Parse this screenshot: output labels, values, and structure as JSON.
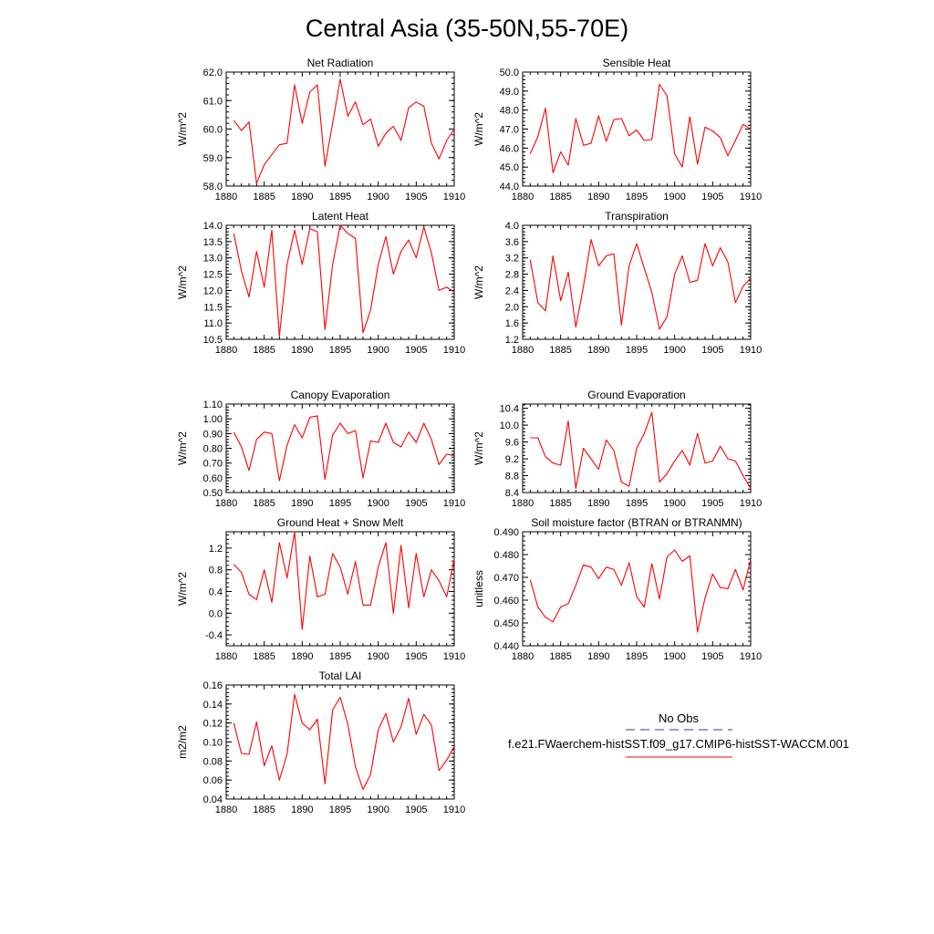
{
  "title": "Central Asia (35-50N,55-70E)",
  "x_ticks": [
    "1880",
    "1885",
    "1890",
    "1895",
    "1900",
    "1905",
    "1910"
  ],
  "legend": {
    "obs_label": "No Obs",
    "obs_color": "#3333aa",
    "model_label": "f.e21.FWaerchem-histSST.f09_g17.CMIP6-histSST-WACCM.001",
    "model_color": "#ff0000"
  },
  "chart_data": [
    {
      "type": "line",
      "title": "Net Radiation",
      "ylabel": "W/m^2",
      "xlim": [
        1880,
        1910
      ],
      "ylim": [
        58.0,
        62.0
      ],
      "y_ticks": [
        "58.0",
        "59.0",
        "60.0",
        "61.0",
        "62.0"
      ],
      "x": [
        1881,
        1882,
        1883,
        1884,
        1885,
        1886,
        1887,
        1888,
        1889,
        1890,
        1891,
        1892,
        1893,
        1894,
        1895,
        1896,
        1897,
        1898,
        1899,
        1900,
        1901,
        1902,
        1903,
        1904,
        1905,
        1906,
        1907,
        1908,
        1909,
        1910
      ],
      "series": [
        {
          "values": [
            60.3,
            59.95,
            60.25,
            58.1,
            58.75,
            59.1,
            59.45,
            59.5,
            61.55,
            60.2,
            61.3,
            61.55,
            58.7,
            60.2,
            61.75,
            60.45,
            60.95,
            60.15,
            60.35,
            59.4,
            59.85,
            60.1,
            59.6,
            60.75,
            60.95,
            60.8,
            59.5,
            58.95,
            59.6,
            60.0
          ]
        }
      ]
    },
    {
      "type": "line",
      "title": "Sensible Heat",
      "ylabel": "W/m^2",
      "xlim": [
        1880,
        1910
      ],
      "ylim": [
        44.0,
        50.0
      ],
      "y_ticks": [
        "44.0",
        "45.0",
        "46.0",
        "47.0",
        "48.0",
        "49.0",
        "50.0"
      ],
      "x": [
        1881,
        1882,
        1883,
        1884,
        1885,
        1886,
        1887,
        1888,
        1889,
        1890,
        1891,
        1892,
        1893,
        1894,
        1895,
        1896,
        1897,
        1898,
        1899,
        1900,
        1901,
        1902,
        1903,
        1904,
        1905,
        1906,
        1907,
        1908,
        1909,
        1910
      ],
      "series": [
        {
          "values": [
            45.7,
            46.6,
            48.1,
            44.7,
            45.8,
            45.1,
            47.55,
            46.15,
            46.25,
            47.7,
            46.35,
            47.5,
            47.55,
            46.65,
            46.95,
            46.4,
            46.45,
            49.35,
            48.75,
            45.7,
            45.0,
            47.65,
            45.15,
            47.1,
            46.9,
            46.55,
            45.6,
            46.4,
            47.25,
            47.0
          ]
        }
      ]
    },
    {
      "type": "line",
      "title": "Latent Heat",
      "ylabel": "W/m^2",
      "xlim": [
        1880,
        1910
      ],
      "ylim": [
        10.5,
        14.0
      ],
      "y_ticks": [
        "10.5",
        "11.0",
        "11.5",
        "12.0",
        "12.5",
        "13.0",
        "13.5",
        "14.0"
      ],
      "x": [
        1881,
        1882,
        1883,
        1884,
        1885,
        1886,
        1887,
        1888,
        1889,
        1890,
        1891,
        1892,
        1893,
        1894,
        1895,
        1896,
        1897,
        1898,
        1899,
        1900,
        1901,
        1902,
        1903,
        1904,
        1905,
        1906,
        1907,
        1908,
        1909,
        1910
      ],
      "series": [
        {
          "values": [
            13.75,
            12.6,
            11.8,
            13.2,
            12.1,
            13.85,
            10.6,
            12.8,
            13.85,
            12.8,
            13.9,
            13.8,
            10.8,
            12.8,
            14.0,
            13.75,
            13.6,
            10.7,
            11.4,
            12.8,
            13.65,
            12.5,
            13.2,
            13.55,
            13.0,
            13.95,
            13.15,
            12.0,
            12.1,
            11.95
          ]
        }
      ]
    },
    {
      "type": "line",
      "title": "Transpiration",
      "ylabel": "W/m^2",
      "xlim": [
        1880,
        1910
      ],
      "ylim": [
        1.2,
        4.0
      ],
      "y_ticks": [
        "1.2",
        "1.6",
        "2.0",
        "2.4",
        "2.8",
        "3.2",
        "3.6",
        "4.0"
      ],
      "x": [
        1881,
        1882,
        1883,
        1884,
        1885,
        1886,
        1887,
        1888,
        1889,
        1890,
        1891,
        1892,
        1893,
        1894,
        1895,
        1896,
        1897,
        1898,
        1899,
        1900,
        1901,
        1902,
        1903,
        1904,
        1905,
        1906,
        1907,
        1908,
        1909,
        1910
      ],
      "series": [
        {
          "values": [
            3.15,
            2.1,
            1.9,
            3.25,
            2.15,
            2.85,
            1.5,
            2.5,
            3.65,
            3.0,
            3.25,
            3.3,
            1.55,
            3.0,
            3.55,
            2.95,
            2.35,
            1.45,
            1.75,
            2.8,
            3.25,
            2.6,
            2.65,
            3.55,
            3.0,
            3.45,
            3.1,
            2.1,
            2.5,
            2.7
          ]
        }
      ]
    },
    {
      "type": "line",
      "title": "Canopy Evaporation",
      "ylabel": "W/m^2",
      "xlim": [
        1880,
        1910
      ],
      "ylim": [
        0.5,
        1.1
      ],
      "y_ticks": [
        "0.50",
        "0.60",
        "0.70",
        "0.80",
        "0.90",
        "1.00",
        "1.10"
      ],
      "x": [
        1881,
        1882,
        1883,
        1884,
        1885,
        1886,
        1887,
        1888,
        1889,
        1890,
        1891,
        1892,
        1893,
        1894,
        1895,
        1896,
        1897,
        1898,
        1899,
        1900,
        1901,
        1902,
        1903,
        1904,
        1905,
        1906,
        1907,
        1908,
        1909,
        1910
      ],
      "series": [
        {
          "values": [
            0.91,
            0.81,
            0.65,
            0.86,
            0.91,
            0.9,
            0.58,
            0.82,
            0.96,
            0.87,
            1.01,
            1.02,
            0.59,
            0.89,
            0.97,
            0.9,
            0.92,
            0.6,
            0.85,
            0.84,
            0.97,
            0.84,
            0.81,
            0.91,
            0.84,
            0.97,
            0.86,
            0.69,
            0.76,
            0.75
          ]
        }
      ]
    },
    {
      "type": "line",
      "title": "Ground Evaporation",
      "ylabel": "W/m^2",
      "xlim": [
        1880,
        1910
      ],
      "ylim": [
        8.4,
        10.5
      ],
      "y_ticks": [
        "8.4",
        "8.8",
        "9.2",
        "9.6",
        "10.0",
        "10.4"
      ],
      "x": [
        1881,
        1882,
        1883,
        1884,
        1885,
        1886,
        1887,
        1888,
        1889,
        1890,
        1891,
        1892,
        1893,
        1894,
        1895,
        1896,
        1897,
        1898,
        1899,
        1900,
        1901,
        1902,
        1903,
        1904,
        1905,
        1906,
        1907,
        1908,
        1909,
        1910
      ],
      "series": [
        {
          "values": [
            9.7,
            9.7,
            9.25,
            9.1,
            9.05,
            10.1,
            8.5,
            9.45,
            9.2,
            8.95,
            9.65,
            9.4,
            8.65,
            8.55,
            9.45,
            9.8,
            10.3,
            8.65,
            8.85,
            9.15,
            9.4,
            9.05,
            9.8,
            9.1,
            9.15,
            9.5,
            9.2,
            9.15,
            8.8,
            8.5
          ]
        }
      ]
    },
    {
      "type": "line",
      "title": "Ground Heat + Snow Melt",
      "ylabel": "W/m^2",
      "xlim": [
        1880,
        1910
      ],
      "ylim": [
        -0.6,
        1.5
      ],
      "y_ticks": [
        "-0.4",
        "0.0",
        "0.4",
        "0.8",
        "1.2"
      ],
      "x": [
        1881,
        1882,
        1883,
        1884,
        1885,
        1886,
        1887,
        1888,
        1889,
        1890,
        1891,
        1892,
        1893,
        1894,
        1895,
        1896,
        1897,
        1898,
        1899,
        1900,
        1901,
        1902,
        1903,
        1904,
        1905,
        1906,
        1907,
        1908,
        1909,
        1910
      ],
      "series": [
        {
          "values": [
            0.9,
            0.75,
            0.35,
            0.25,
            0.8,
            0.2,
            1.3,
            0.65,
            1.5,
            -0.3,
            1.05,
            0.3,
            0.35,
            1.1,
            0.85,
            0.35,
            0.95,
            0.15,
            0.15,
            0.85,
            1.3,
            0.0,
            1.25,
            0.1,
            1.1,
            0.3,
            0.8,
            0.6,
            0.3,
            1.0
          ]
        }
      ]
    },
    {
      "type": "line",
      "title": "Soil moisture factor (BTRAN or BTRANMN)",
      "ylabel": "unitless",
      "xlim": [
        1880,
        1910
      ],
      "ylim": [
        0.44,
        0.49
      ],
      "y_ticks": [
        "0.440",
        "0.450",
        "0.460",
        "0.470",
        "0.480",
        "0.490"
      ],
      "x": [
        1881,
        1882,
        1883,
        1884,
        1885,
        1886,
        1887,
        1888,
        1889,
        1890,
        1891,
        1892,
        1893,
        1894,
        1895,
        1896,
        1897,
        1898,
        1899,
        1900,
        1901,
        1902,
        1903,
        1904,
        1905,
        1906,
        1907,
        1908,
        1909,
        1910
      ],
      "series": [
        {
          "values": [
            0.469,
            0.457,
            0.4525,
            0.4505,
            0.457,
            0.4585,
            0.4665,
            0.4755,
            0.4745,
            0.4695,
            0.4745,
            0.4735,
            0.4665,
            0.4765,
            0.4615,
            0.457,
            0.476,
            0.4605,
            0.479,
            0.482,
            0.477,
            0.4795,
            0.446,
            0.461,
            0.4715,
            0.4655,
            0.465,
            0.4735,
            0.4645,
            0.478
          ]
        }
      ]
    },
    {
      "type": "line",
      "title": "Total LAI",
      "ylabel": "m2/m2",
      "xlim": [
        1880,
        1910
      ],
      "ylim": [
        0.04,
        0.16
      ],
      "y_ticks": [
        "0.04",
        "0.06",
        "0.08",
        "0.10",
        "0.12",
        "0.14",
        "0.16"
      ],
      "x": [
        1881,
        1882,
        1883,
        1884,
        1885,
        1886,
        1887,
        1888,
        1889,
        1890,
        1891,
        1892,
        1893,
        1894,
        1895,
        1896,
        1897,
        1898,
        1899,
        1900,
        1901,
        1902,
        1903,
        1904,
        1905,
        1906,
        1907,
        1908,
        1909,
        1910
      ],
      "series": [
        {
          "values": [
            0.12,
            0.088,
            0.087,
            0.121,
            0.075,
            0.096,
            0.06,
            0.087,
            0.15,
            0.12,
            0.113,
            0.124,
            0.056,
            0.134,
            0.147,
            0.119,
            0.074,
            0.05,
            0.066,
            0.113,
            0.13,
            0.1,
            0.116,
            0.146,
            0.108,
            0.129,
            0.118,
            0.07,
            0.081,
            0.095
          ]
        }
      ]
    }
  ]
}
